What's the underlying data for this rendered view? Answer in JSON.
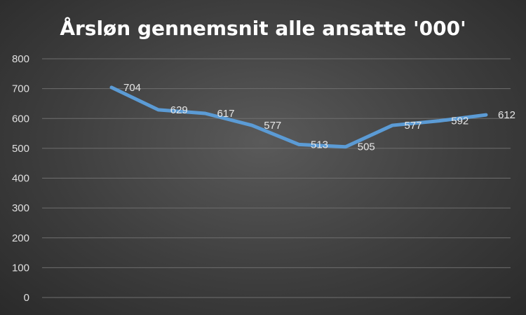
{
  "chart_data": {
    "type": "line",
    "title": "Årsløn gennemsnit alle ansatte '000'",
    "xlabel": "",
    "ylabel": "",
    "ylim": [
      0,
      800
    ],
    "yticks": [
      0,
      100,
      200,
      300,
      400,
      500,
      600,
      700,
      800
    ],
    "grid": true,
    "legend": "none",
    "series": [
      {
        "values": [
          704,
          629,
          617,
          577,
          513,
          505,
          577,
          592,
          612
        ],
        "color": "#5b9bd5"
      }
    ]
  }
}
